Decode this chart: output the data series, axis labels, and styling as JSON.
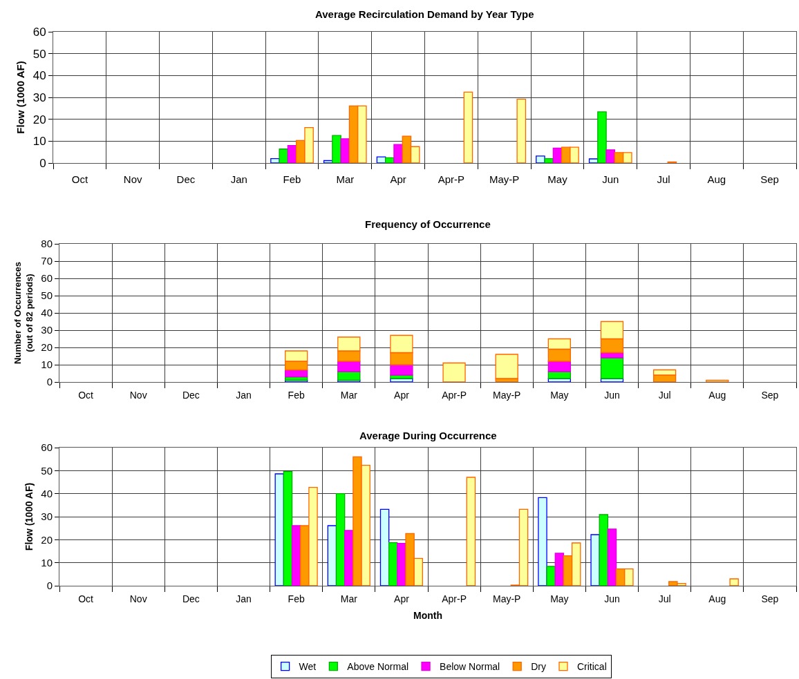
{
  "chart_data": [
    {
      "type": "bar",
      "title": "Average Recirculation Demand by Year Type",
      "ylabel": "Flow (1000 AF)",
      "categories": [
        "Oct",
        "Nov",
        "Dec",
        "Jan",
        "Feb",
        "Mar",
        "Apr",
        "Apr-P",
        "May-P",
        "May",
        "Jun",
        "Jul",
        "Aug",
        "Sep"
      ],
      "ylim": [
        0,
        60
      ],
      "yticks": [
        0,
        10,
        20,
        30,
        40,
        50,
        60
      ],
      "grid": true,
      "legend": "bottom",
      "series": [
        {
          "name": "Wet",
          "color": "#ccffff",
          "values": [
            null,
            null,
            null,
            null,
            2.0,
            1.1,
            2.8,
            null,
            null,
            3.2,
            1.9,
            null,
            null,
            null
          ]
        },
        {
          "name": "Above Normal",
          "color": "#00ff00",
          "values": [
            null,
            null,
            null,
            null,
            6.4,
            12.6,
            2.4,
            null,
            null,
            2.0,
            23.4,
            null,
            null,
            null
          ]
        },
        {
          "name": "Below Normal",
          "color": "#ff00ff",
          "values": [
            null,
            null,
            null,
            null,
            8.0,
            11.1,
            8.5,
            null,
            null,
            6.8,
            6.0,
            null,
            null,
            null
          ]
        },
        {
          "name": "Dry",
          "color": "#ff9900",
          "values": [
            null,
            null,
            null,
            null,
            10.3,
            26.1,
            12.3,
            null,
            null,
            7.2,
            4.8,
            0.5,
            null,
            null
          ]
        },
        {
          "name": "Critical",
          "color": "#ffff99",
          "values": [
            null,
            null,
            null,
            null,
            16.2,
            26.1,
            7.5,
            32.4,
            29.2,
            7.2,
            4.8,
            null,
            null,
            null
          ]
        }
      ]
    },
    {
      "type": "bar",
      "stacked": true,
      "title": "Frequency of Occurrence",
      "ylabel": "Number of Occurrences\n(out of 82 periods)",
      "categories": [
        "Oct",
        "Nov",
        "Dec",
        "Jan",
        "Feb",
        "Mar",
        "Apr",
        "Apr-P",
        "May-P",
        "May",
        "Jun",
        "Jul",
        "Aug",
        "Sep"
      ],
      "ylim": [
        0,
        80
      ],
      "yticks": [
        0,
        10,
        20,
        30,
        40,
        50,
        60,
        70,
        80
      ],
      "grid": true,
      "legend": "bottom",
      "series": [
        {
          "name": "Wet",
          "color": "#ccffff",
          "values": [
            null,
            null,
            null,
            null,
            1,
            1,
            2,
            null,
            null,
            2,
            2,
            null,
            null,
            null
          ]
        },
        {
          "name": "Above Normal",
          "color": "#00ff00",
          "values": [
            null,
            null,
            null,
            null,
            2,
            5,
            2,
            null,
            null,
            4,
            12,
            null,
            null,
            null
          ]
        },
        {
          "name": "Below Normal",
          "color": "#ff00ff",
          "values": [
            null,
            null,
            null,
            null,
            4,
            6,
            6,
            null,
            null,
            6,
            3,
            null,
            null,
            null
          ]
        },
        {
          "name": "Dry",
          "color": "#ff9900",
          "values": [
            null,
            null,
            null,
            null,
            5,
            6,
            7,
            null,
            2,
            7,
            8,
            4,
            null,
            null
          ]
        },
        {
          "name": "Critical",
          "color": "#ffff99",
          "values": [
            null,
            null,
            null,
            null,
            6,
            8,
            10,
            11,
            14,
            6,
            10,
            3,
            1,
            null
          ]
        }
      ]
    },
    {
      "type": "bar",
      "title": "Average During Occurrence",
      "ylabel": "Flow (1000 AF)",
      "xlabel": "Month",
      "categories": [
        "Oct",
        "Nov",
        "Dec",
        "Jan",
        "Feb",
        "Mar",
        "Apr",
        "Apr-P",
        "May-P",
        "May",
        "Jun",
        "Jul",
        "Aug",
        "Sep"
      ],
      "ylim": [
        0,
        60
      ],
      "yticks": [
        0,
        10,
        20,
        30,
        40,
        50,
        60
      ],
      "grid": true,
      "legend": "bottom",
      "series": [
        {
          "name": "Wet",
          "color": "#ccffff",
          "values": [
            null,
            null,
            null,
            null,
            48.6,
            26.1,
            33.2,
            null,
            null,
            38.3,
            22.2,
            null,
            null,
            null
          ]
        },
        {
          "name": "Above Normal",
          "color": "#00ff00",
          "values": [
            null,
            null,
            null,
            null,
            49.6,
            40.0,
            18.7,
            null,
            null,
            8.4,
            30.9,
            null,
            null,
            null
          ]
        },
        {
          "name": "Below Normal",
          "color": "#ff00ff",
          "values": [
            null,
            null,
            null,
            null,
            26.1,
            24.0,
            18.4,
            null,
            null,
            14.1,
            24.6,
            null,
            null,
            null
          ]
        },
        {
          "name": "Dry",
          "color": "#ff9900",
          "values": [
            null,
            null,
            null,
            null,
            26.1,
            56.0,
            22.7,
            null,
            0.3,
            13.0,
            7.3,
            1.8,
            null,
            null
          ]
        },
        {
          "name": "Critical",
          "color": "#ffff99",
          "values": [
            null,
            null,
            null,
            null,
            42.7,
            52.3,
            11.9,
            47.1,
            33.2,
            18.6,
            7.3,
            1.0,
            3.0,
            null
          ]
        }
      ]
    }
  ]
}
